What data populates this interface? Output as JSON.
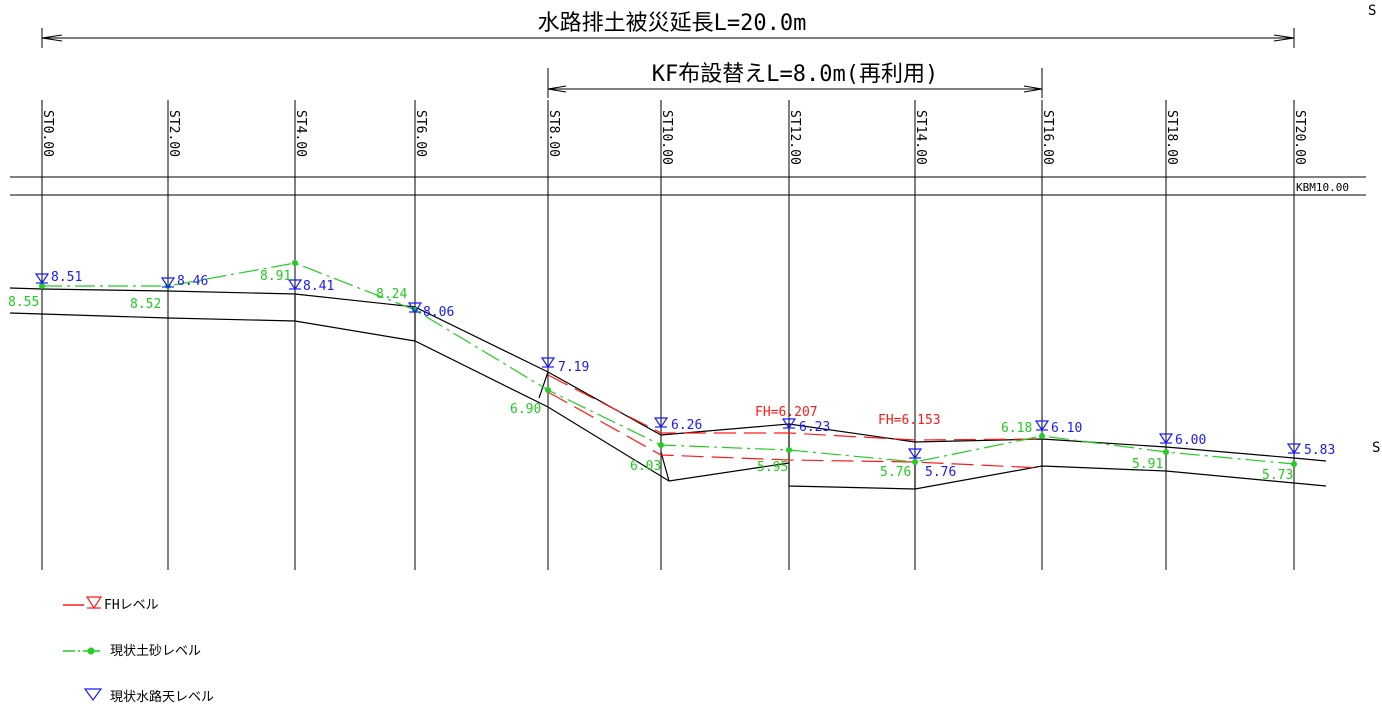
{
  "titles": {
    "overall": "水路排土被災延長L=20.0m",
    "kf": "KF布設替えL=8.0m(再利用)"
  },
  "kbm_label": "KBM10.00",
  "stations": [
    "ST0.00",
    "ST2.00",
    "ST4.00",
    "ST6.00",
    "ST8.00",
    "ST10.00",
    "ST12.00",
    "ST14.00",
    "ST16.00",
    "ST18.00",
    "ST20.00"
  ],
  "chart_data": {
    "type": "line",
    "x": [
      "ST0.00",
      "ST2.00",
      "ST4.00",
      "ST6.00",
      "ST8.00",
      "ST10.00",
      "ST12.00",
      "ST14.00",
      "ST16.00",
      "ST18.00",
      "ST20.00"
    ],
    "series": [
      {
        "name": "現状水路天レベル",
        "values": [
          "8.51",
          "8.46",
          "8.41",
          "8.06",
          "7.19",
          "6.26",
          "6.23",
          "5.76",
          "6.10",
          "6.00",
          "5.83"
        ]
      },
      {
        "name": "現状土砂レベル",
        "values": [
          "8.55",
          "8.52",
          "8.91",
          "8.24",
          "6.90",
          "6.03",
          "5.95",
          "5.76",
          "6.18",
          "5.91",
          "5.73"
        ]
      }
    ],
    "fh_labels": [
      "FH=6.207",
      "FH=6.153"
    ]
  },
  "legend": {
    "fh": "FHレベル",
    "soil": "現状土砂レベル",
    "canal": "現状水路天レベル"
  },
  "edge_glyphs": [
    "S",
    "S"
  ],
  "colors": {
    "canal": "#1a1aff",
    "soil": "#22cc22",
    "fh": "#ff1a1a",
    "line": "#000000"
  }
}
